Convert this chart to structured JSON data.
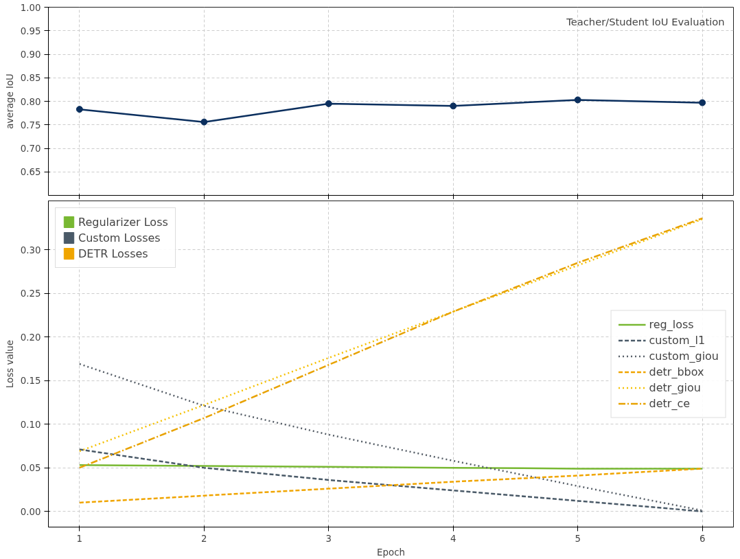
{
  "chart_data": [
    {
      "type": "line",
      "ylabel": "average IoU",
      "annotations": [
        "Teacher/Student IoU Evaluation"
      ],
      "x": [
        1,
        2,
        3,
        4,
        5,
        6
      ],
      "xlim": [
        0.75,
        6.25
      ],
      "xticks": [
        1,
        2,
        3,
        4,
        5,
        6
      ],
      "ylim": [
        0.6,
        1.0
      ],
      "yticks": [
        {
          "value": 0.65,
          "label": "0.65"
        },
        {
          "value": 0.7,
          "label": "0.70"
        },
        {
          "value": 0.75,
          "label": "0.75"
        },
        {
          "value": 0.8,
          "label": "0.80"
        },
        {
          "value": 0.85,
          "label": "0.85"
        },
        {
          "value": 0.9,
          "label": "0.90"
        },
        {
          "value": 0.95,
          "label": "0.95"
        },
        {
          "value": 1.0,
          "label": "1.00"
        }
      ],
      "tick_labels": "y",
      "grid": true,
      "marker": "circle",
      "line_style": "solid",
      "series": [
        {
          "color": "#0b2f5e",
          "values": [
            0.783,
            0.756,
            0.795,
            0.79,
            0.803,
            0.797
          ]
        }
      ]
    },
    {
      "type": "line",
      "xlabel": "Epoch",
      "ylabel": "Loss value",
      "x": [
        1,
        2,
        3,
        4,
        5,
        6
      ],
      "xlim": [
        0.75,
        6.25
      ],
      "xticks": [
        1,
        2,
        3,
        4,
        5,
        6
      ],
      "ylim": [
        -0.018,
        0.356
      ],
      "yticks": [
        {
          "value": 0.0,
          "label": "0.00"
        },
        {
          "value": 0.05,
          "label": "0.05"
        },
        {
          "value": 0.1,
          "label": "0.10"
        },
        {
          "value": 0.15,
          "label": "0.15"
        },
        {
          "value": 0.2,
          "label": "0.20"
        },
        {
          "value": 0.25,
          "label": "0.25"
        },
        {
          "value": 0.3,
          "label": "0.30"
        }
      ],
      "grid": true,
      "legend": "right",
      "marker": "none",
      "series": [
        {
          "type": "bar",
          "name": "Regularizer Loss",
          "color": "#78b832",
          "values": [
            null,
            null,
            null,
            null,
            null,
            null
          ]
        },
        {
          "type": "bar",
          "name": "Custom Losses",
          "color": "#4a5a68",
          "values": [
            null,
            null,
            null,
            null,
            null,
            null
          ]
        },
        {
          "type": "bar",
          "name": "DETR Losses",
          "color": "#f0a500",
          "values": [
            null,
            null,
            null,
            null,
            null,
            null
          ]
        },
        {
          "name": "reg_loss",
          "color": "#78b832",
          "line_style": "solid",
          "values": [
            0.053,
            0.052,
            0.051,
            0.05,
            0.049,
            0.049
          ]
        },
        {
          "name": "custom_l1",
          "color": "#4a5a68",
          "line_style": "dashed",
          "values": [
            0.071,
            0.05,
            0.036,
            0.024,
            0.012,
            0.0
          ]
        },
        {
          "name": "custom_giou",
          "color": "#555d66",
          "line_style": "dotted",
          "values": [
            0.169,
            0.121,
            0.088,
            0.058,
            0.029,
            0.001
          ]
        },
        {
          "name": "detr_bbox",
          "color": "#f0a500",
          "line_style": "dashed",
          "values": [
            0.01,
            0.018,
            0.026,
            0.034,
            0.041,
            0.049
          ]
        },
        {
          "name": "detr_giou",
          "color": "#f5c000",
          "line_style": "dotted",
          "values": [
            0.069,
            0.122,
            0.176,
            0.229,
            0.282,
            0.335
          ]
        },
        {
          "name": "detr_ce",
          "color": "#e8a200",
          "line_style": "dashdot",
          "values": [
            0.05,
            0.107,
            0.168,
            0.229,
            0.285,
            0.336
          ]
        }
      ]
    }
  ]
}
